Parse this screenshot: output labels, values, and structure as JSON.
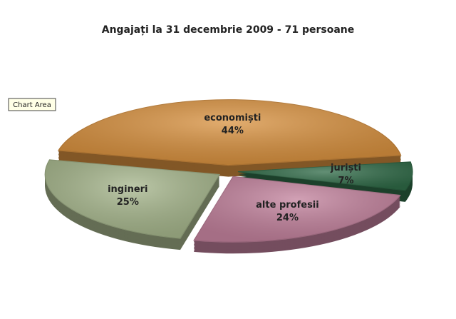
{
  "chart_data": {
    "type": "pie",
    "title": "Angajați la 31 decembrie 2009 - 71 persoane",
    "categories": [
      "economiști",
      "juriști",
      "alte profesii",
      "ingineri"
    ],
    "values": [
      44,
      7,
      24,
      25
    ],
    "value_labels": [
      "44%",
      "7%",
      "24%",
      "25%"
    ],
    "colors": [
      "#d8913f",
      "#2f6a47",
      "#c2819c",
      "#a6b68c"
    ],
    "tooltip": "Chart Area"
  }
}
